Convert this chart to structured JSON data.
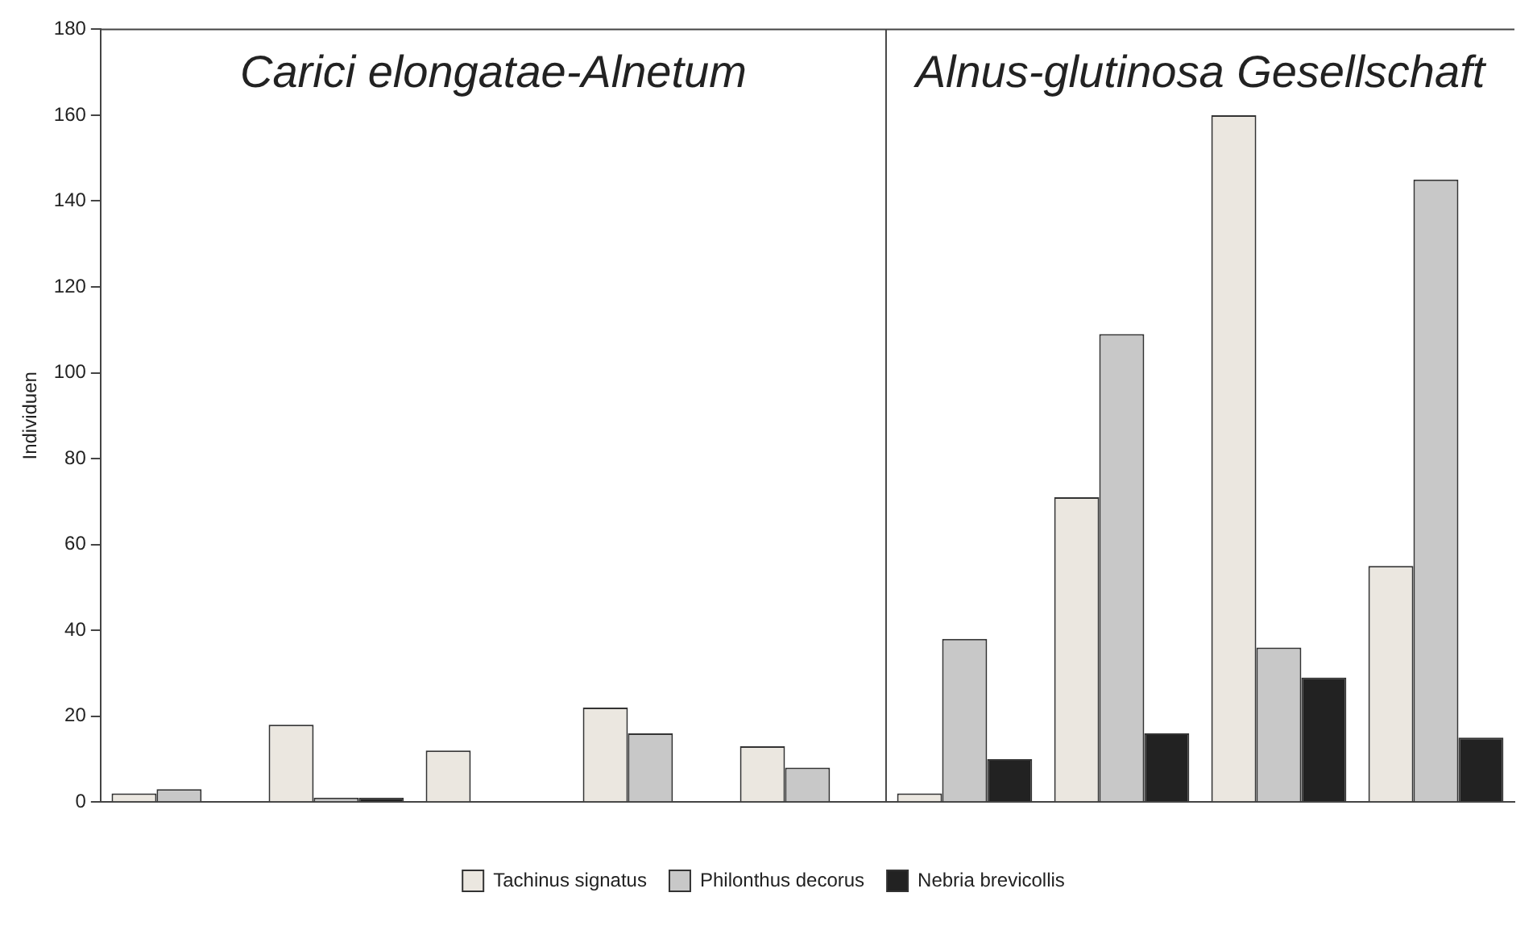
{
  "chart_data": {
    "type": "bar",
    "ylabel": "Individuen",
    "categories": [
      null,
      null,
      null,
      null,
      null,
      null,
      null,
      null,
      null
    ],
    "series": [
      {
        "name": "Tachinus signatus",
        "color": "#ebe7e0",
        "values": [
          2,
          18,
          12,
          22,
          13,
          2,
          71,
          160,
          55
        ]
      },
      {
        "name": "Philonthus decorus",
        "color": "#c8c8c8",
        "values": [
          3,
          1,
          0,
          16,
          8,
          38,
          109,
          36,
          145
        ]
      },
      {
        "name": "Nebria brevicollis",
        "color": "#222222",
        "values": [
          0,
          1,
          0,
          0,
          0,
          10,
          16,
          29,
          15
        ]
      }
    ],
    "ylim": [
      0,
      180
    ],
    "yticks": [
      0,
      20,
      40,
      60,
      80,
      100,
      120,
      140,
      160,
      180
    ],
    "grid": false,
    "legend": "bottom",
    "annotations": [
      "Carici elongatae-Alnetum",
      "Alnus-glutinosa Gesellschaft"
    ]
  }
}
